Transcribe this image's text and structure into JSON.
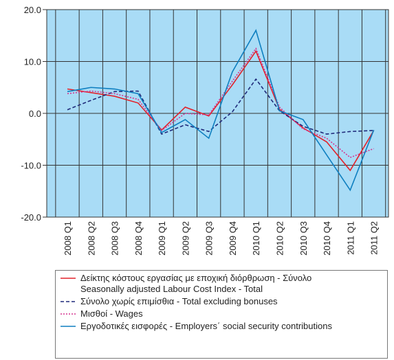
{
  "chart_data": {
    "type": "line",
    "categories": [
      "2008 Q1",
      "2008 Q2",
      "2008 Q3",
      "2008 Q4",
      "2009 Q1",
      "2009 Q2",
      "2009 Q3",
      "2009 Q4",
      "2010 Q1",
      "2010 Q2",
      "2010 Q3",
      "2010 Q4",
      "2011 Q1",
      "2011 Q2"
    ],
    "ylim": [
      -20,
      20
    ],
    "yticks": [
      {
        "value": -20,
        "label": "-20.0"
      },
      {
        "value": -10,
        "label": "-10.0"
      },
      {
        "value": 0,
        "label": "0.0"
      },
      {
        "value": 10,
        "label": "10.0"
      },
      {
        "value": 20,
        "label": "20.0"
      }
    ],
    "grid": true,
    "series": [
      {
        "name": "Δείκτης κόστους εργασίας με εποχική διόρθρωση - Σύνολο\nSeasonally adjusted Labour Cost Index - Total",
        "color": "#e3222a",
        "dash": "solid",
        "values": [
          4.7,
          4.0,
          3.3,
          2.0,
          -3.2,
          1.2,
          -0.5,
          5.5,
          12.0,
          0.8,
          -2.8,
          -5.5,
          -11.0,
          -3.3
        ]
      },
      {
        "name": "Σύνολο χωρίς επιμίσθια - Total excluding bonuses",
        "color": "#1f2a7a",
        "dash": "dashed",
        "values": [
          0.7,
          2.5,
          4.2,
          4.3,
          -4.0,
          -2.2,
          -3.5,
          0.3,
          6.6,
          0.5,
          -2.5,
          -4.0,
          -3.5,
          -3.3
        ]
      },
      {
        "name": "Μισθοί - Wages",
        "color": "#d6338f",
        "dash": "dotted",
        "values": [
          3.8,
          4.3,
          3.8,
          2.7,
          -3.3,
          0.0,
          -0.3,
          6.2,
          12.5,
          1.2,
          -3.0,
          -4.8,
          -8.5,
          -6.8
        ]
      },
      {
        "name": "Εργοδοτικές εισφορές - Employers΄ social security contributions",
        "color": "#0e7fc0",
        "dash": "solid",
        "values": [
          4.2,
          5.0,
          4.7,
          3.8,
          -3.7,
          -1.2,
          -4.8,
          8.0,
          16.0,
          0.5,
          -1.2,
          -8.0,
          -14.8,
          -3.2
        ]
      }
    ]
  }
}
